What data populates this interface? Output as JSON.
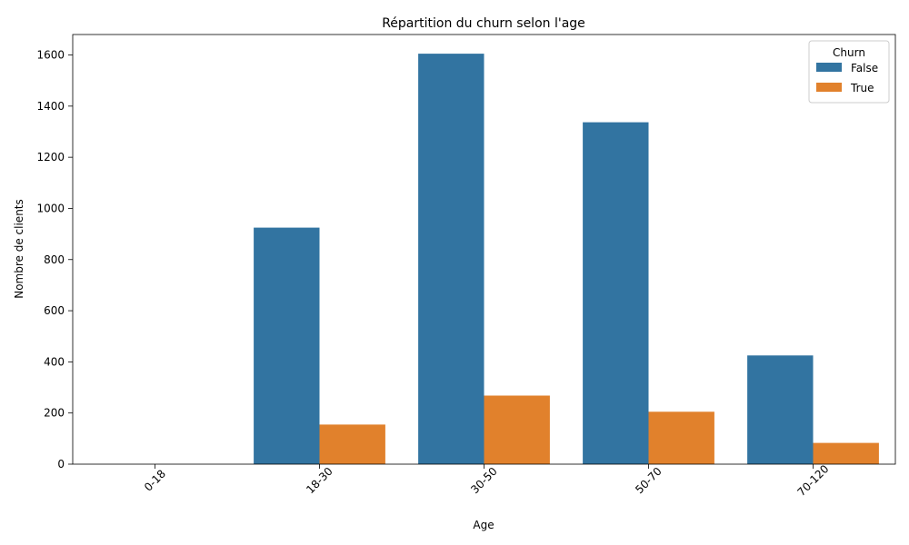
{
  "chart_data": {
    "type": "bar",
    "title": "Répartition du churn selon l'age",
    "xlabel": "Age",
    "ylabel": "Nombre de clients",
    "categories": [
      "0-18",
      "18-30",
      "30-50",
      "50-70",
      "70-120"
    ],
    "series": [
      {
        "name": "False",
        "color": "#3274a1",
        "values": [
          0,
          925,
          1605,
          1337,
          425
        ]
      },
      {
        "name": "True",
        "color": "#e1812c",
        "values": [
          0,
          155,
          268,
          205,
          83
        ]
      }
    ],
    "ylim": [
      0,
      1680
    ],
    "yticks": [
      0,
      200,
      400,
      600,
      800,
      1000,
      1200,
      1400,
      1600
    ],
    "grid": false,
    "legend": {
      "title": "Churn",
      "position": "top-right"
    }
  }
}
